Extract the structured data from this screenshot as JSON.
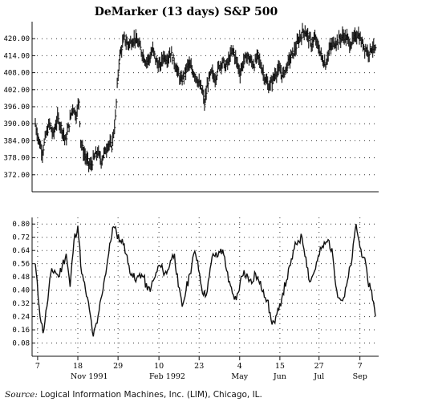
{
  "chart_data": [
    {
      "type": "bar",
      "style": "high-low price bars",
      "title": "DeMarker (13 days) S&P 500",
      "ylim": [
        366,
        426
      ],
      "yticks": [
        "372.00",
        "378.00",
        "384.00",
        "390.00",
        "396.00",
        "402.00",
        "408.00",
        "414.00",
        "420.00"
      ],
      "grid": "dotted",
      "close_path": [
        [
          0,
          390
        ],
        [
          4,
          384
        ],
        [
          8,
          380
        ],
        [
          12,
          386
        ],
        [
          16,
          390
        ],
        [
          20,
          386
        ],
        [
          25,
          392
        ],
        [
          30,
          388
        ],
        [
          34,
          384
        ],
        [
          38,
          390
        ],
        [
          42,
          396
        ],
        [
          46,
          393
        ],
        [
          49,
          398
        ],
        [
          51,
          384
        ],
        [
          54,
          380
        ],
        [
          58,
          377
        ],
        [
          62,
          375
        ],
        [
          66,
          378
        ],
        [
          70,
          380
        ],
        [
          74,
          377
        ],
        [
          78,
          380
        ],
        [
          82,
          383
        ],
        [
          86,
          382
        ],
        [
          90,
          392
        ],
        [
          92,
          403
        ],
        [
          94,
          412
        ],
        [
          97,
          417
        ],
        [
          100,
          420
        ],
        [
          104,
          418
        ],
        [
          108,
          419
        ],
        [
          112,
          420
        ],
        [
          116,
          418
        ],
        [
          120,
          415
        ],
        [
          124,
          412
        ],
        [
          128,
          413
        ],
        [
          132,
          416
        ],
        [
          136,
          412
        ],
        [
          140,
          410
        ],
        [
          144,
          414
        ],
        [
          148,
          413
        ],
        [
          152,
          415
        ],
        [
          156,
          412
        ],
        [
          160,
          408
        ],
        [
          164,
          405
        ],
        [
          168,
          408
        ],
        [
          172,
          411
        ],
        [
          176,
          409
        ],
        [
          180,
          407
        ],
        [
          184,
          404
        ],
        [
          188,
          401
        ],
        [
          190,
          397
        ],
        [
          192,
          401
        ],
        [
          194,
          405
        ],
        [
          198,
          408
        ],
        [
          202,
          406
        ],
        [
          206,
          410
        ],
        [
          210,
          412
        ],
        [
          214,
          410
        ],
        [
          218,
          413
        ],
        [
          222,
          416
        ],
        [
          226,
          412
        ],
        [
          230,
          408
        ],
        [
          234,
          412
        ],
        [
          238,
          414
        ],
        [
          242,
          412
        ],
        [
          246,
          411
        ],
        [
          250,
          414
        ],
        [
          254,
          410
        ],
        [
          258,
          406
        ],
        [
          262,
          403
        ],
        [
          266,
          405
        ],
        [
          270,
          408
        ],
        [
          274,
          409
        ],
        [
          278,
          407
        ],
        [
          282,
          410
        ],
        [
          286,
          413
        ],
        [
          290,
          415
        ],
        [
          294,
          418
        ],
        [
          298,
          421
        ],
        [
          302,
          423
        ],
        [
          306,
          421
        ],
        [
          310,
          418
        ],
        [
          314,
          420
        ],
        [
          318,
          417
        ],
        [
          322,
          413
        ],
        [
          326,
          411
        ],
        [
          330,
          416
        ],
        [
          334,
          418
        ],
        [
          338,
          419
        ],
        [
          342,
          420
        ],
        [
          346,
          421
        ],
        [
          350,
          420
        ],
        [
          354,
          418
        ],
        [
          358,
          420
        ],
        [
          362,
          422
        ],
        [
          366,
          419
        ],
        [
          370,
          417
        ],
        [
          374,
          415
        ],
        [
          378,
          417
        ],
        [
          382,
          416
        ]
      ]
    },
    {
      "type": "line",
      "ylim": [
        0,
        0.84
      ],
      "yticks": [
        "0.08",
        "0.16",
        "0.24",
        "0.32",
        "0.40",
        "0.48",
        "0.56",
        "0.64",
        "0.72",
        "0.80"
      ],
      "xtick_top": [
        "7",
        "18",
        "29",
        "10",
        "23",
        "4",
        "15",
        "27",
        "7"
      ],
      "xtick_top_pos": [
        0.016,
        0.132,
        0.248,
        0.366,
        0.482,
        0.599,
        0.715,
        0.828,
        0.946
      ],
      "xtick_bottom": [
        "Nov 1991",
        "Feb 1992",
        "May",
        "Jun",
        "Jul",
        "Sep"
      ],
      "xtick_bottom_pos": [
        0.165,
        0.39,
        0.599,
        0.715,
        0.828,
        0.946
      ],
      "grid": "dotted",
      "series": [
        {
          "path": [
            [
              0,
              0.56
            ],
            [
              5,
              0.3
            ],
            [
              10,
              0.14
            ],
            [
              15,
              0.3
            ],
            [
              20,
              0.5
            ],
            [
              25,
              0.52
            ],
            [
              30,
              0.48
            ],
            [
              35,
              0.55
            ],
            [
              40,
              0.62
            ],
            [
              45,
              0.42
            ],
            [
              50,
              0.7
            ],
            [
              55,
              0.79
            ],
            [
              60,
              0.5
            ],
            [
              65,
              0.4
            ],
            [
              70,
              0.28
            ],
            [
              75,
              0.12
            ],
            [
              80,
              0.2
            ],
            [
              85,
              0.35
            ],
            [
              90,
              0.48
            ],
            [
              95,
              0.62
            ],
            [
              100,
              0.78
            ],
            [
              105,
              0.75
            ],
            [
              110,
              0.7
            ],
            [
              115,
              0.68
            ],
            [
              120,
              0.56
            ],
            [
              125,
              0.5
            ],
            [
              130,
              0.45
            ],
            [
              135,
              0.5
            ],
            [
              140,
              0.48
            ],
            [
              145,
              0.4
            ],
            [
              150,
              0.42
            ],
            [
              155,
              0.48
            ],
            [
              160,
              0.55
            ],
            [
              165,
              0.52
            ],
            [
              170,
              0.5
            ],
            [
              175,
              0.58
            ],
            [
              180,
              0.62
            ],
            [
              185,
              0.42
            ],
            [
              190,
              0.3
            ],
            [
              195,
              0.4
            ],
            [
              200,
              0.5
            ],
            [
              205,
              0.62
            ],
            [
              210,
              0.58
            ],
            [
              215,
              0.42
            ],
            [
              220,
              0.36
            ],
            [
              225,
              0.48
            ],
            [
              230,
              0.62
            ],
            [
              235,
              0.6
            ],
            [
              240,
              0.65
            ],
            [
              245,
              0.6
            ],
            [
              250,
              0.45
            ],
            [
              255,
              0.38
            ],
            [
              260,
              0.34
            ],
            [
              265,
              0.45
            ],
            [
              270,
              0.52
            ],
            [
              275,
              0.48
            ],
            [
              280,
              0.44
            ],
            [
              285,
              0.5
            ],
            [
              290,
              0.44
            ],
            [
              295,
              0.4
            ],
            [
              300,
              0.34
            ],
            [
              305,
              0.22
            ],
            [
              310,
              0.2
            ],
            [
              315,
              0.28
            ],
            [
              320,
              0.38
            ],
            [
              325,
              0.46
            ],
            [
              330,
              0.55
            ],
            [
              335,
              0.65
            ],
            [
              340,
              0.7
            ],
            [
              345,
              0.72
            ],
            [
              350,
              0.6
            ],
            [
              355,
              0.45
            ],
            [
              360,
              0.5
            ],
            [
              365,
              0.58
            ],
            [
              370,
              0.65
            ],
            [
              375,
              0.68
            ],
            [
              380,
              0.7
            ],
            [
              385,
              0.6
            ],
            [
              390,
              0.4
            ],
            [
              395,
              0.34
            ],
            [
              400,
              0.36
            ],
            [
              405,
              0.48
            ],
            [
              410,
              0.6
            ],
            [
              415,
              0.8
            ],
            [
              420,
              0.66
            ],
            [
              425,
              0.6
            ],
            [
              430,
              0.46
            ],
            [
              435,
              0.4
            ],
            [
              440,
              0.24
            ]
          ]
        }
      ]
    }
  ],
  "source": {
    "label": "Source:",
    "text": "Logical Information Machines, Inc. (LIM), Chicago, IL."
  }
}
